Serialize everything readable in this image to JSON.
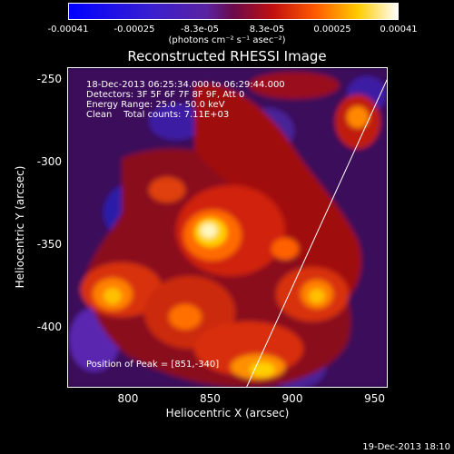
{
  "colorbar": {
    "ticks": [
      "-0.00041",
      "-0.00025",
      "-8.3e-05",
      "8.3e-05",
      "0.00025",
      "0.00041"
    ],
    "units": "(photons cm⁻² s⁻¹ asec⁻²)"
  },
  "chart_data": {
    "type": "heatmap",
    "title": "Reconstructed RHESSI Image",
    "xlabel": "Heliocentric X (arcsec)",
    "ylabel": "Heliocentric Y (arcsec)",
    "xlim": [
      763,
      958
    ],
    "ylim": [
      -437,
      -243
    ],
    "xticks": [
      "800",
      "850",
      "900",
      "950"
    ],
    "xtick_values": [
      800,
      850,
      900,
      950
    ],
    "yticks": [
      "-250",
      "-300",
      "-350",
      "-400"
    ],
    "ytick_values": [
      -250,
      -300,
      -350,
      -400
    ],
    "color_range": [
      -0.00041,
      0.00041
    ],
    "colormap": "blue-purple-red-yellow-white",
    "peak": [
      851,
      -340
    ],
    "limb_line": [
      [
        872,
        -437
      ],
      [
        961,
        -243
      ]
    ]
  },
  "annotations": {
    "time": "18-Dec-2013 06:25:34.000 to 06:29:44.000",
    "detectors": "Detectors: 3F 5F 6F 7F 8F 9F, Att 0",
    "energy": "Energy Range: 25.0 - 50.0 keV",
    "clean": "Clean    Total counts: 7.11E+03",
    "peak_text": "Position of Peak = [851,-340]"
  },
  "footer": "19-Dec-2013 18:10"
}
